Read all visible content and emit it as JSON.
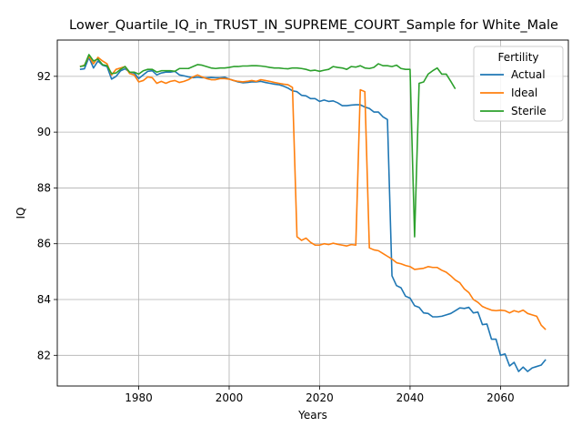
{
  "chart_data": {
    "type": "line",
    "title": "Lower_Quartile_IQ_in_TRUST_IN_SUPREME_COURT_Sample for White_Male",
    "xlabel": "Years",
    "ylabel": "IQ",
    "xlim": [
      1962,
      2075
    ],
    "ylim": [
      80.9,
      93.3
    ],
    "x_ticks": [
      1980,
      2000,
      2020,
      2040,
      2060
    ],
    "y_ticks": [
      82,
      84,
      86,
      88,
      90,
      92
    ],
    "grid": true,
    "legend": {
      "title": "Fertility",
      "placement": "top-right"
    },
    "series": [
      {
        "name": "Actual",
        "color": "#1f77b4",
        "points": [
          [
            1967,
            92.25
          ],
          [
            1968,
            92.27
          ],
          [
            1969,
            92.68
          ],
          [
            1970,
            92.3
          ],
          [
            1971,
            92.55
          ],
          [
            1972,
            92.4
          ],
          [
            1973,
            92.35
          ],
          [
            1974,
            91.9
          ],
          [
            1975,
            92.0
          ],
          [
            1976,
            92.2
          ],
          [
            1977,
            92.27
          ],
          [
            1978,
            92.15
          ],
          [
            1979,
            92.12
          ],
          [
            1980,
            91.92
          ],
          [
            1981,
            92.05
          ],
          [
            1982,
            92.18
          ],
          [
            1983,
            92.2
          ],
          [
            1984,
            92.05
          ],
          [
            1985,
            92.12
          ],
          [
            1986,
            92.15
          ],
          [
            1987,
            92.15
          ],
          [
            1988,
            92.18
          ],
          [
            1989,
            92.05
          ],
          [
            1990,
            92.02
          ],
          [
            1991,
            91.98
          ],
          [
            1992,
            91.95
          ],
          [
            1993,
            91.97
          ],
          [
            1994,
            91.95
          ],
          [
            1995,
            91.95
          ],
          [
            1996,
            91.96
          ],
          [
            1997,
            91.95
          ],
          [
            1998,
            91.95
          ],
          [
            1999,
            91.97
          ],
          [
            2000,
            91.9
          ],
          [
            2001,
            91.85
          ],
          [
            2002,
            91.8
          ],
          [
            2003,
            91.77
          ],
          [
            2004,
            91.78
          ],
          [
            2005,
            91.8
          ],
          [
            2006,
            91.8
          ],
          [
            2007,
            91.82
          ],
          [
            2008,
            91.78
          ],
          [
            2009,
            91.75
          ],
          [
            2010,
            91.72
          ],
          [
            2011,
            91.7
          ],
          [
            2012,
            91.65
          ],
          [
            2013,
            91.58
          ],
          [
            2014,
            91.48
          ],
          [
            2015,
            91.45
          ],
          [
            2016,
            91.32
          ],
          [
            2017,
            91.3
          ],
          [
            2018,
            91.2
          ],
          [
            2019,
            91.2
          ],
          [
            2020,
            91.1
          ],
          [
            2021,
            91.15
          ],
          [
            2022,
            91.1
          ],
          [
            2023,
            91.12
          ],
          [
            2024,
            91.05
          ],
          [
            2025,
            90.95
          ],
          [
            2026,
            90.95
          ],
          [
            2027,
            90.97
          ],
          [
            2028,
            90.98
          ],
          [
            2029,
            90.98
          ],
          [
            2030,
            90.9
          ],
          [
            2031,
            90.85
          ],
          [
            2032,
            90.72
          ],
          [
            2033,
            90.72
          ],
          [
            2034,
            90.55
          ],
          [
            2035,
            90.45
          ],
          [
            2036,
            84.85
          ],
          [
            2037,
            84.5
          ],
          [
            2038,
            84.42
          ],
          [
            2039,
            84.12
          ],
          [
            2040,
            84.05
          ],
          [
            2041,
            83.78
          ],
          [
            2042,
            83.72
          ],
          [
            2043,
            83.52
          ],
          [
            2044,
            83.5
          ],
          [
            2045,
            83.38
          ],
          [
            2046,
            83.38
          ],
          [
            2047,
            83.4
          ],
          [
            2048,
            83.45
          ],
          [
            2049,
            83.5
          ],
          [
            2050,
            83.6
          ],
          [
            2051,
            83.7
          ],
          [
            2052,
            83.68
          ],
          [
            2053,
            83.72
          ],
          [
            2054,
            83.52
          ],
          [
            2055,
            83.55
          ],
          [
            2056,
            83.1
          ],
          [
            2057,
            83.12
          ],
          [
            2058,
            82.58
          ],
          [
            2059,
            82.58
          ],
          [
            2060,
            82.0
          ],
          [
            2061,
            82.05
          ],
          [
            2062,
            81.62
          ],
          [
            2063,
            81.75
          ],
          [
            2064,
            81.42
          ],
          [
            2065,
            81.58
          ],
          [
            2066,
            81.42
          ],
          [
            2067,
            81.55
          ],
          [
            2068,
            81.6
          ],
          [
            2069,
            81.65
          ],
          [
            2070,
            81.85
          ]
        ]
      },
      {
        "name": "Ideal",
        "color": "#ff7f0e",
        "points": [
          [
            1967,
            92.35
          ],
          [
            1968,
            92.4
          ],
          [
            1969,
            92.72
          ],
          [
            1970,
            92.45
          ],
          [
            1971,
            92.68
          ],
          [
            1972,
            92.55
          ],
          [
            1973,
            92.45
          ],
          [
            1974,
            92.05
          ],
          [
            1975,
            92.25
          ],
          [
            1976,
            92.3
          ],
          [
            1977,
            92.35
          ],
          [
            1978,
            92.1
          ],
          [
            1979,
            92.05
          ],
          [
            1980,
            91.8
          ],
          [
            1981,
            91.85
          ],
          [
            1982,
            91.98
          ],
          [
            1983,
            91.95
          ],
          [
            1984,
            91.75
          ],
          [
            1985,
            91.82
          ],
          [
            1986,
            91.75
          ],
          [
            1987,
            91.82
          ],
          [
            1988,
            91.85
          ],
          [
            1989,
            91.78
          ],
          [
            1990,
            91.82
          ],
          [
            1991,
            91.88
          ],
          [
            1992,
            91.98
          ],
          [
            1993,
            92.05
          ],
          [
            1994,
            91.98
          ],
          [
            1995,
            91.92
          ],
          [
            1996,
            91.88
          ],
          [
            1997,
            91.88
          ],
          [
            1998,
            91.92
          ],
          [
            1999,
            91.92
          ],
          [
            2000,
            91.9
          ],
          [
            2001,
            91.85
          ],
          [
            2002,
            91.82
          ],
          [
            2003,
            91.8
          ],
          [
            2004,
            91.82
          ],
          [
            2005,
            91.85
          ],
          [
            2006,
            91.82
          ],
          [
            2007,
            91.88
          ],
          [
            2008,
            91.85
          ],
          [
            2009,
            91.82
          ],
          [
            2010,
            91.78
          ],
          [
            2011,
            91.75
          ],
          [
            2012,
            91.72
          ],
          [
            2013,
            91.7
          ],
          [
            2014,
            91.6
          ],
          [
            2015,
            86.25
          ],
          [
            2016,
            86.12
          ],
          [
            2017,
            86.2
          ],
          [
            2018,
            86.05
          ],
          [
            2019,
            85.95
          ],
          [
            2020,
            85.95
          ],
          [
            2021,
            86.0
          ],
          [
            2022,
            85.97
          ],
          [
            2023,
            86.02
          ],
          [
            2024,
            85.98
          ],
          [
            2025,
            85.95
          ],
          [
            2026,
            85.92
          ],
          [
            2027,
            85.97
          ],
          [
            2028,
            85.95
          ],
          [
            2029,
            91.52
          ],
          [
            2030,
            91.45
          ],
          [
            2031,
            85.85
          ],
          [
            2032,
            85.78
          ],
          [
            2033,
            85.75
          ],
          [
            2034,
            85.65
          ],
          [
            2035,
            85.55
          ],
          [
            2036,
            85.45
          ],
          [
            2037,
            85.32
          ],
          [
            2038,
            85.28
          ],
          [
            2039,
            85.22
          ],
          [
            2040,
            85.18
          ],
          [
            2041,
            85.08
          ],
          [
            2042,
            85.1
          ],
          [
            2043,
            85.12
          ],
          [
            2044,
            85.18
          ],
          [
            2045,
            85.15
          ],
          [
            2046,
            85.15
          ],
          [
            2047,
            85.05
          ],
          [
            2048,
            84.98
          ],
          [
            2049,
            84.85
          ],
          [
            2050,
            84.7
          ],
          [
            2051,
            84.6
          ],
          [
            2052,
            84.38
          ],
          [
            2053,
            84.25
          ],
          [
            2054,
            84.0
          ],
          [
            2055,
            83.9
          ],
          [
            2056,
            83.75
          ],
          [
            2057,
            83.68
          ],
          [
            2058,
            83.62
          ],
          [
            2059,
            83.6
          ],
          [
            2060,
            83.62
          ],
          [
            2061,
            83.6
          ],
          [
            2062,
            83.52
          ],
          [
            2063,
            83.6
          ],
          [
            2064,
            83.55
          ],
          [
            2065,
            83.62
          ],
          [
            2066,
            83.5
          ],
          [
            2067,
            83.45
          ],
          [
            2068,
            83.4
          ],
          [
            2069,
            83.08
          ],
          [
            2070,
            82.92
          ]
        ]
      },
      {
        "name": "Sterile",
        "color": "#2ca02c",
        "points": [
          [
            1967,
            92.35
          ],
          [
            1968,
            92.38
          ],
          [
            1969,
            92.78
          ],
          [
            1970,
            92.55
          ],
          [
            1971,
            92.62
          ],
          [
            1972,
            92.42
          ],
          [
            1973,
            92.38
          ],
          [
            1974,
            92.1
          ],
          [
            1975,
            92.12
          ],
          [
            1976,
            92.25
          ],
          [
            1977,
            92.35
          ],
          [
            1978,
            92.15
          ],
          [
            1979,
            92.15
          ],
          [
            1980,
            92.08
          ],
          [
            1981,
            92.2
          ],
          [
            1982,
            92.25
          ],
          [
            1983,
            92.25
          ],
          [
            1984,
            92.15
          ],
          [
            1985,
            92.2
          ],
          [
            1986,
            92.2
          ],
          [
            1987,
            92.2
          ],
          [
            1988,
            92.18
          ],
          [
            1989,
            92.28
          ],
          [
            1990,
            92.28
          ],
          [
            1991,
            92.28
          ],
          [
            1992,
            92.35
          ],
          [
            1993,
            92.42
          ],
          [
            1994,
            92.4
          ],
          [
            1995,
            92.35
          ],
          [
            1996,
            92.3
          ],
          [
            1997,
            92.28
          ],
          [
            1998,
            92.3
          ],
          [
            1999,
            92.3
          ],
          [
            2000,
            92.32
          ],
          [
            2001,
            92.35
          ],
          [
            2002,
            92.35
          ],
          [
            2003,
            92.37
          ],
          [
            2004,
            92.37
          ],
          [
            2005,
            92.38
          ],
          [
            2006,
            92.38
          ],
          [
            2007,
            92.37
          ],
          [
            2008,
            92.35
          ],
          [
            2009,
            92.32
          ],
          [
            2010,
            92.3
          ],
          [
            2011,
            92.3
          ],
          [
            2012,
            92.28
          ],
          [
            2013,
            92.27
          ],
          [
            2014,
            92.3
          ],
          [
            2015,
            92.3
          ],
          [
            2016,
            92.28
          ],
          [
            2017,
            92.25
          ],
          [
            2018,
            92.2
          ],
          [
            2019,
            92.22
          ],
          [
            2020,
            92.18
          ],
          [
            2021,
            92.22
          ],
          [
            2022,
            92.25
          ],
          [
            2023,
            92.35
          ],
          [
            2024,
            92.32
          ],
          [
            2025,
            92.3
          ],
          [
            2026,
            92.25
          ],
          [
            2027,
            92.35
          ],
          [
            2028,
            92.33
          ],
          [
            2029,
            92.38
          ],
          [
            2030,
            92.3
          ],
          [
            2031,
            92.28
          ],
          [
            2032,
            92.32
          ],
          [
            2033,
            92.45
          ],
          [
            2034,
            92.38
          ],
          [
            2035,
            92.38
          ],
          [
            2036,
            92.35
          ],
          [
            2037,
            92.4
          ],
          [
            2038,
            92.28
          ],
          [
            2039,
            92.25
          ],
          [
            2040,
            92.25
          ],
          [
            2041,
            86.25
          ],
          [
            2042,
            91.75
          ],
          [
            2043,
            91.8
          ],
          [
            2044,
            92.08
          ],
          [
            2045,
            92.2
          ],
          [
            2046,
            92.3
          ],
          [
            2047,
            92.08
          ],
          [
            2048,
            92.08
          ],
          [
            2049,
            91.82
          ],
          [
            2050,
            91.55
          ]
        ]
      }
    ]
  }
}
